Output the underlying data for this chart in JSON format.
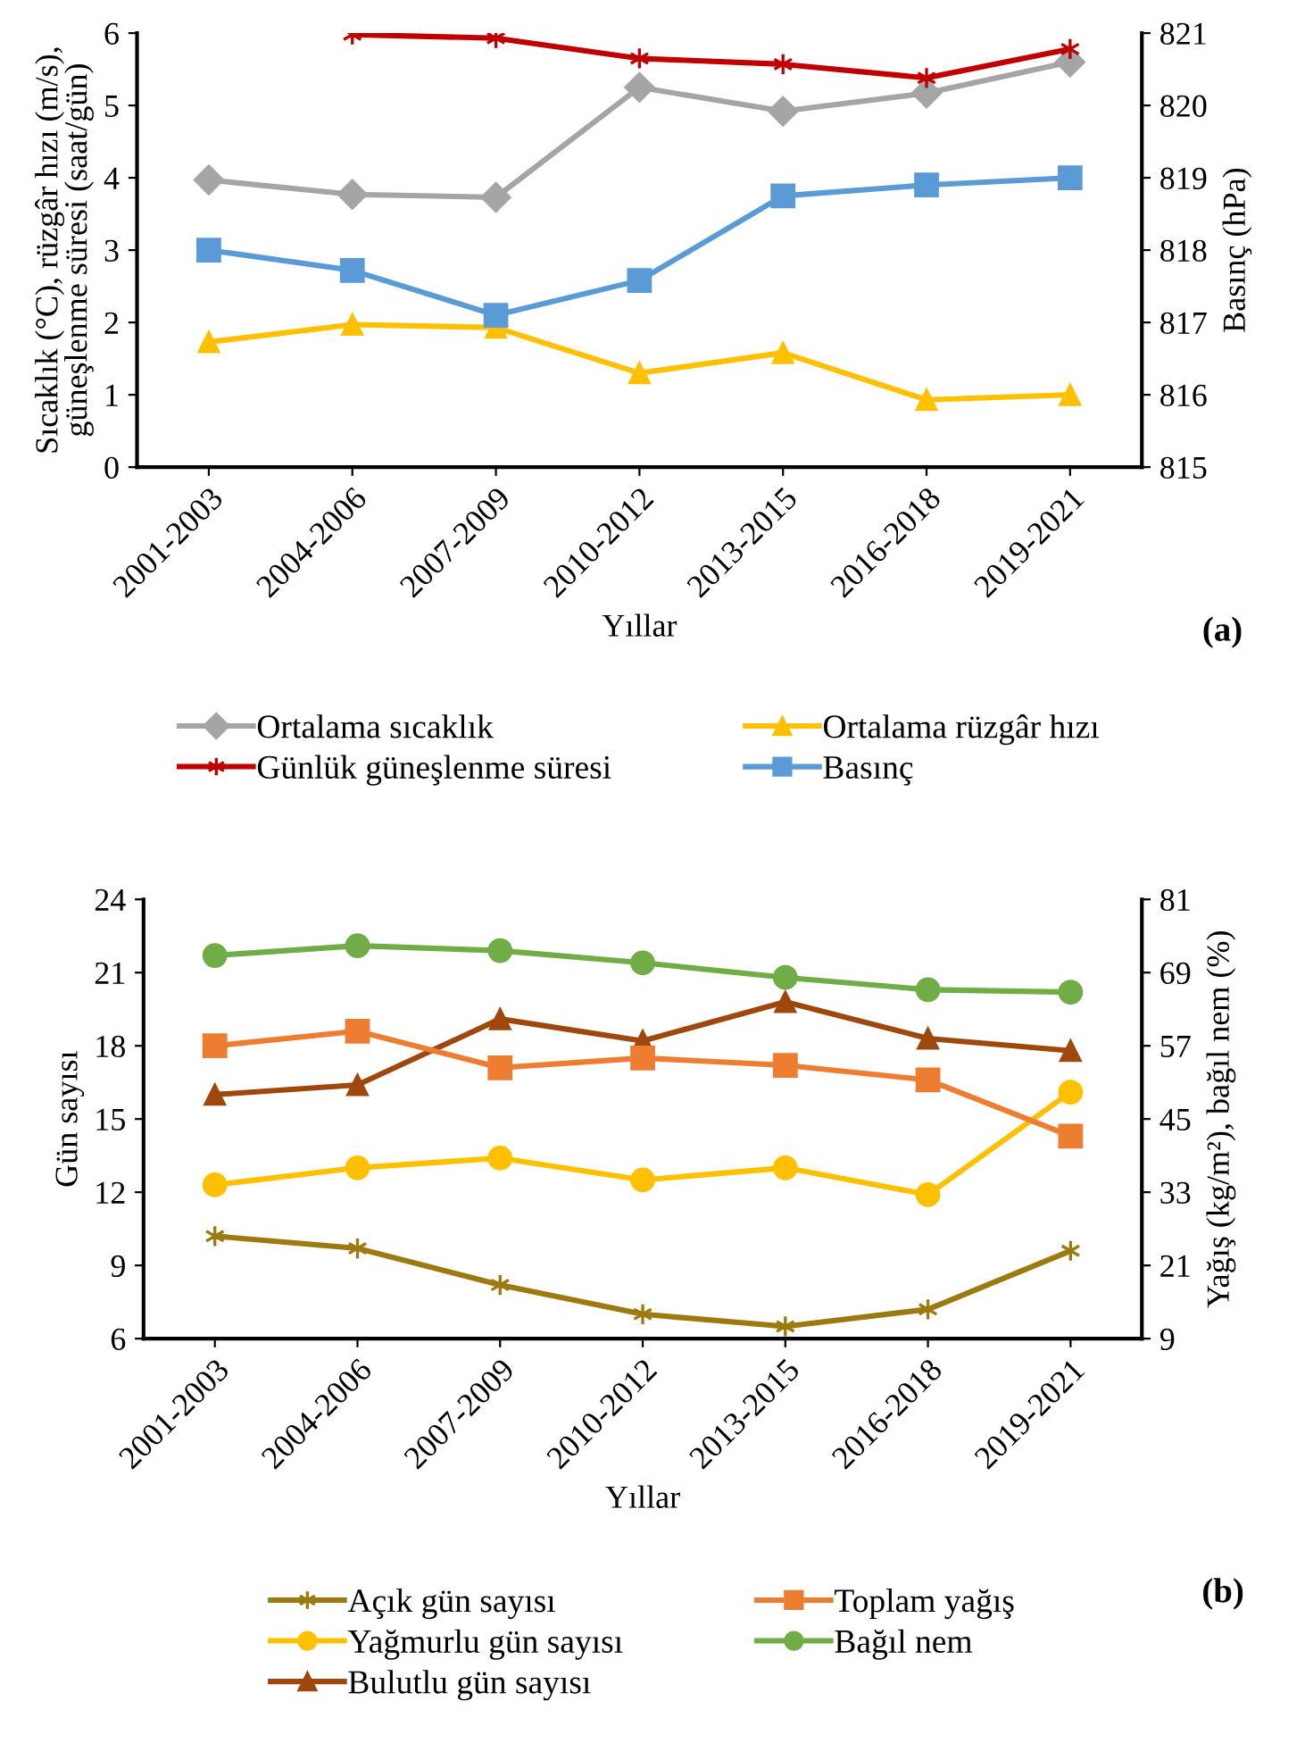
{
  "chart_data": [
    {
      "type": "line",
      "categories": [
        "2001-2003",
        "2004-2006",
        "2007-2009",
        "2010-2012",
        "2013-2015",
        "2016-2018",
        "2019-2021"
      ],
      "xlabel": "Yıllar",
      "ylabel": "Sıcaklık (°C), rüzgâr hızı (m/s),\ngüneşlenme süresi (saat/gün)",
      "y2label": "Basınç (hPa)",
      "ylim": [
        0,
        6
      ],
      "yticks": [
        0,
        1,
        2,
        3,
        4,
        5,
        6
      ],
      "y2lim": [
        815,
        821
      ],
      "y2ticks": [
        815,
        816,
        817,
        818,
        819,
        820,
        821
      ],
      "grid": false,
      "legend": "bottom",
      "annotations": [
        "(a)"
      ],
      "series": [
        {
          "name": "Ortalama sıcaklık",
          "color": "#a5a5a5",
          "marker": "diamond",
          "values": [
            3.97,
            3.77,
            3.73,
            5.25,
            4.92,
            5.17,
            5.6
          ]
        },
        {
          "name": "Günlük güneşlenme süresi",
          "color": "#c00000",
          "marker": "cross",
          "values": [
            null,
            5.98,
            5.93,
            5.65,
            5.57,
            5.38,
            5.78
          ]
        },
        {
          "name": "Ortalama rüzgâr hızı",
          "color": "#ffc000",
          "marker": "triangle",
          "values": [
            1.73,
            1.97,
            1.93,
            1.3,
            1.58,
            0.93,
            1.0
          ]
        },
        {
          "name": "Basınç",
          "color": "#5b9bd5",
          "marker": "square",
          "axis": "y2",
          "values": [
            818.0,
            817.72,
            817.1,
            817.58,
            818.75,
            818.9,
            819.0
          ]
        }
      ]
    },
    {
      "type": "line",
      "categories": [
        "2001-2003",
        "2004-2006",
        "2007-2009",
        "2010-2012",
        "2013-2015",
        "2016-2018",
        "2019-2021"
      ],
      "xlabel": "Yıllar",
      "ylabel": "Gün sayısı",
      "y2label": "Yağış (kg/m²), bağıl nem (%)",
      "ylim": [
        6,
        24
      ],
      "yticks": [
        6,
        9,
        12,
        15,
        18,
        21,
        24
      ],
      "y2lim": [
        9,
        81
      ],
      "y2ticks": [
        9,
        21,
        33,
        45,
        57,
        69,
        81
      ],
      "grid": false,
      "legend": "bottom",
      "annotations": [
        "(b)"
      ],
      "series": [
        {
          "name": "Açık gün sayısı",
          "color": "#9c7a10",
          "marker": "cross",
          "values": [
            10.2,
            9.7,
            8.2,
            7.0,
            6.5,
            7.2,
            9.6
          ]
        },
        {
          "name": "Yağmurlu gün sayısı",
          "color": "#ffc000",
          "marker": "circle",
          "values": [
            12.3,
            13.0,
            13.4,
            12.5,
            13.0,
            11.9,
            16.1
          ]
        },
        {
          "name": "Bulutlu gün sayısı",
          "color": "#9e480e",
          "marker": "triangle",
          "values": [
            16.0,
            16.4,
            19.1,
            18.2,
            19.8,
            18.3,
            17.8
          ]
        },
        {
          "name": "Toplam yağış",
          "color": "#ed7d31",
          "marker": "square",
          "axis": "y2",
          "values": [
            57.0,
            59.4,
            53.4,
            55.0,
            53.8,
            51.4,
            42.2
          ]
        },
        {
          "name": "Bağıl nem",
          "color": "#70ad47",
          "marker": "circle",
          "axis": "y2",
          "values": [
            71.8,
            73.4,
            72.6,
            70.6,
            68.2,
            66.2,
            65.8
          ]
        }
      ]
    }
  ]
}
